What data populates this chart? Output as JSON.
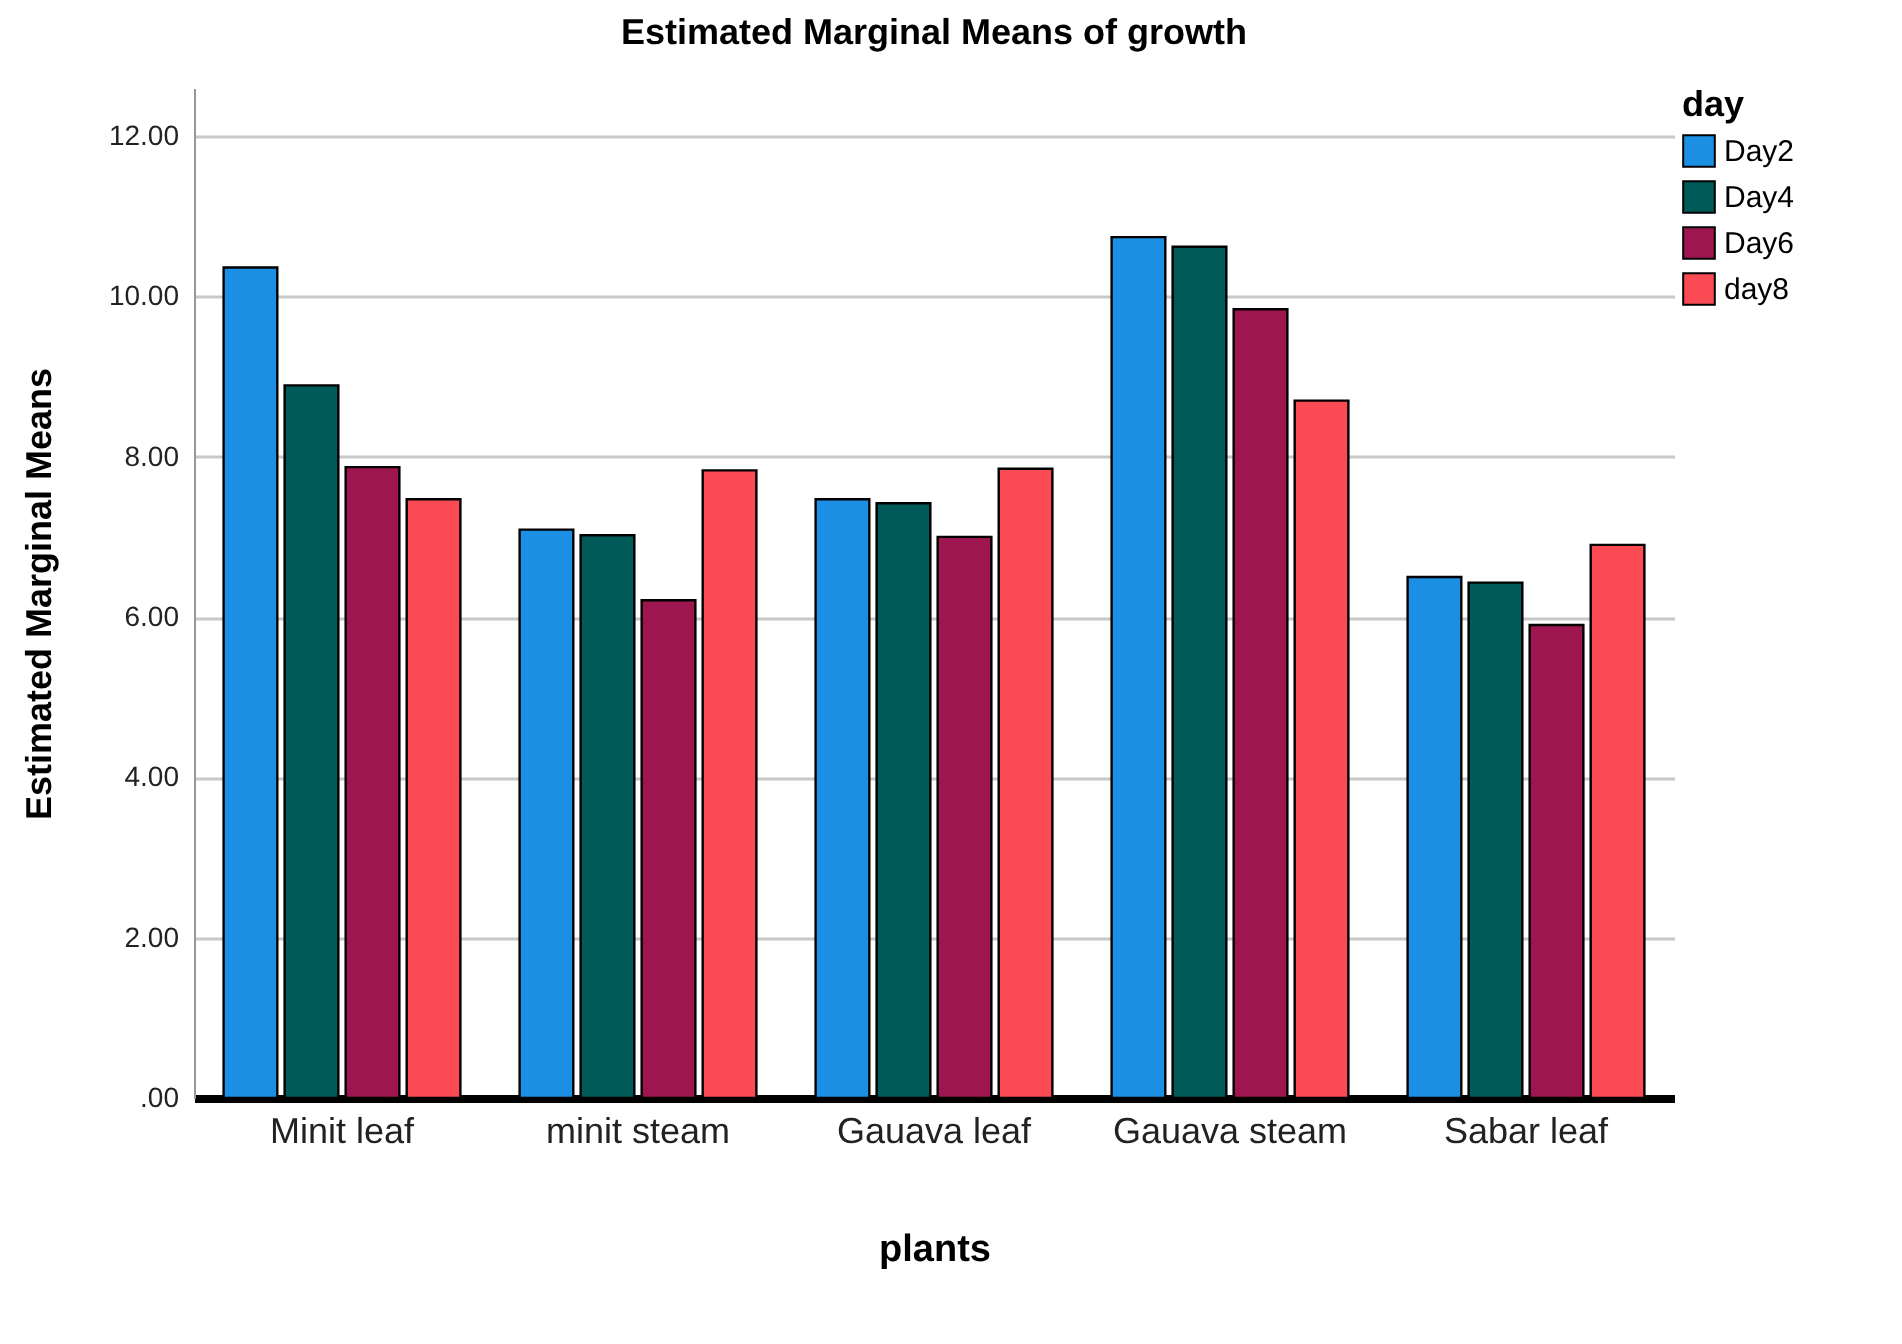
{
  "chart_data": {
    "type": "bar",
    "title": "Estimated Marginal Means of growth",
    "xlabel": "plants",
    "ylabel": "Estimated Marginal Means",
    "legend_title": "day",
    "categories": [
      "Minit leaf",
      "minit steam",
      "Gauava leaf",
      "Gauava steam",
      "Sabar leaf"
    ],
    "series": [
      {
        "name": "Day2",
        "color": "#1a8fe3",
        "values": [
          10.36,
          7.09,
          7.47,
          10.74,
          6.5
        ]
      },
      {
        "name": "Day4",
        "color": "#005a58",
        "values": [
          8.89,
          7.02,
          7.42,
          10.62,
          6.43
        ]
      },
      {
        "name": "Day6",
        "color": "#9e1650",
        "values": [
          7.87,
          6.21,
          7.0,
          9.84,
          5.9
        ]
      },
      {
        "name": "day8",
        "color": "#fa4b55",
        "values": [
          7.47,
          7.83,
          7.85,
          8.7,
          6.9
        ]
      }
    ],
    "ylim": [
      0,
      12.6
    ],
    "yticks": [
      {
        "value": 0,
        "label": ".00"
      },
      {
        "value": 2,
        "label": "2.00"
      },
      {
        "value": 4,
        "label": "4.00"
      },
      {
        "value": 6,
        "label": "6.00"
      },
      {
        "value": 8,
        "label": "8.00"
      },
      {
        "value": 10,
        "label": "10.00"
      },
      {
        "value": 12,
        "label": "12.00"
      }
    ],
    "grid": "y",
    "legend": "top right"
  }
}
